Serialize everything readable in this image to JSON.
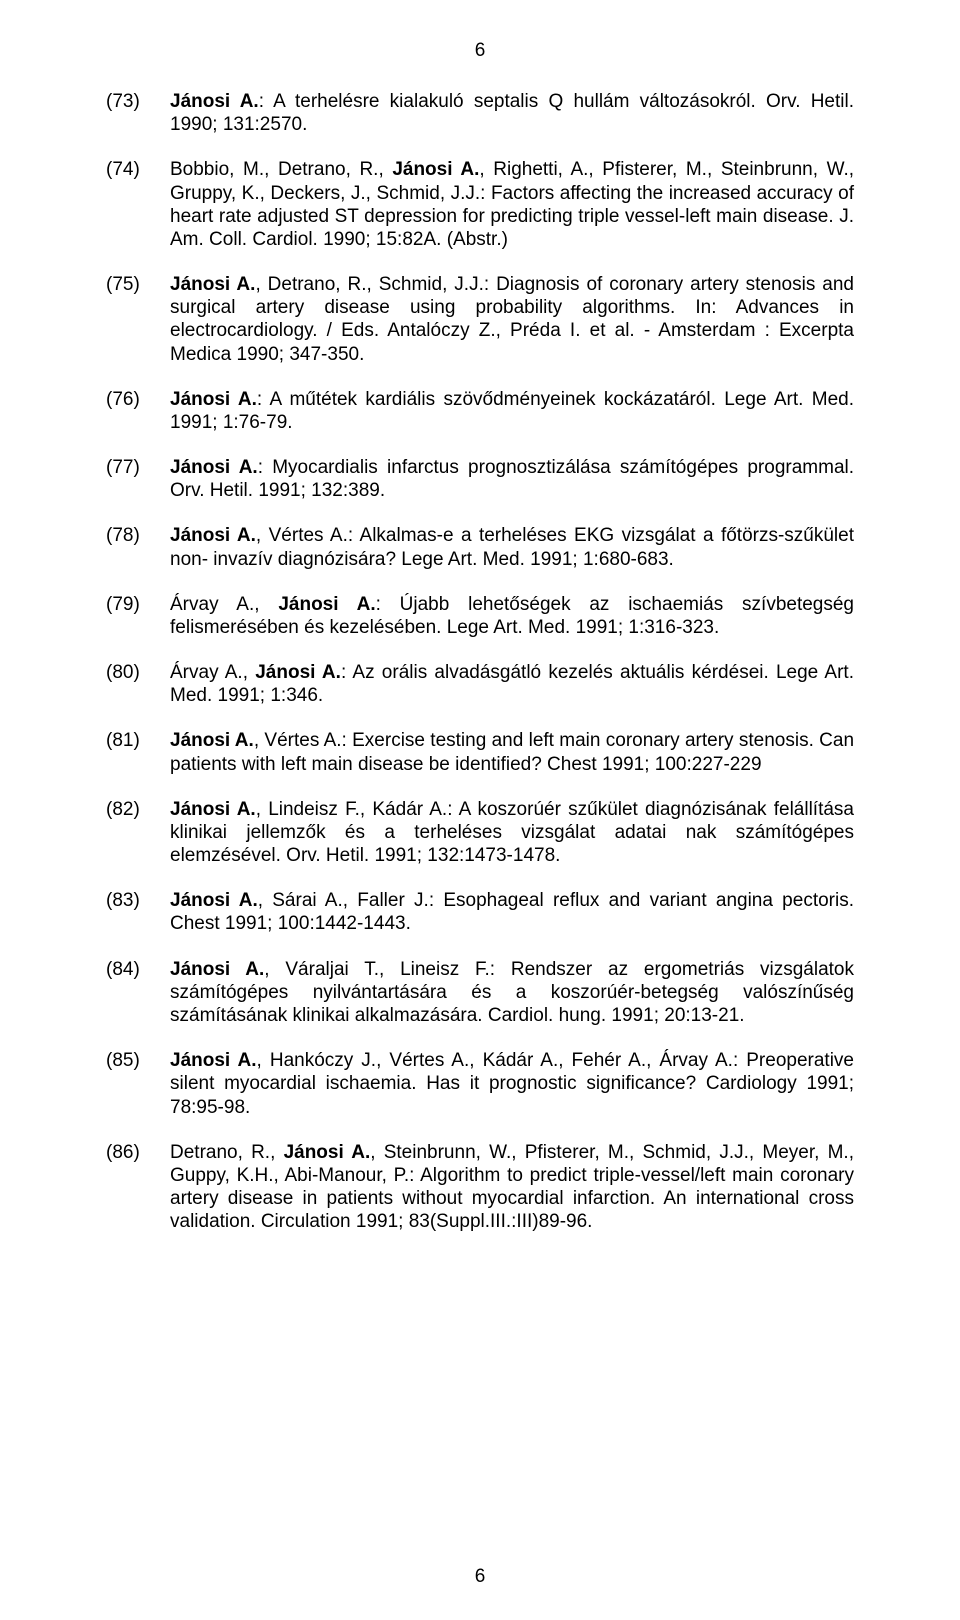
{
  "pageNumberTop": "6",
  "pageNumberBottom": "6",
  "fontSize": 19,
  "textColor": "#000000",
  "backgroundColor": "#ffffff",
  "entries": [
    {
      "num": "(73)",
      "segments": [
        {
          "bold": true,
          "text": "Jánosi A."
        },
        {
          "bold": false,
          "text": ": A terhelésre kialakuló septalis Q hullám változásokról. Orv. Hetil. 1990; 131:2570."
        }
      ]
    },
    {
      "num": "(74)",
      "segments": [
        {
          "bold": false,
          "text": "Bobbio, M., Detrano, R., "
        },
        {
          "bold": true,
          "text": "Jánosi A."
        },
        {
          "bold": false,
          "text": ", Righetti, A., Pfisterer, M., Steinbrunn, W., Gruppy, K., Deckers, J., Schmid, J.J.: Factors affecting the increased accuracy of heart rate adjusted ST depression for predicting triple vessel-left main disease. J. Am. Coll. Cardiol. 1990; 15:82A. (Abstr.)"
        }
      ]
    },
    {
      "num": "(75)",
      "segments": [
        {
          "bold": true,
          "text": "Jánosi A."
        },
        {
          "bold": false,
          "text": ", Detrano, R., Schmid, J.J.: Diagnosis of coronary artery stenosis and surgical artery disease using probability algorithms. In: Advances in electrocardiology. / Eds. Antalóczy Z., Préda I. et al. - Amsterdam : Excerpta Medica 1990; 347-350."
        }
      ]
    },
    {
      "num": "(76)",
      "segments": [
        {
          "bold": true,
          "text": "Jánosi A."
        },
        {
          "bold": false,
          "text": ": A műtétek kardiális szövődményeinek kockázatáról. Lege Art. Med. 1991; 1:76-79."
        }
      ]
    },
    {
      "num": "(77)",
      "segments": [
        {
          "bold": true,
          "text": "Jánosi A."
        },
        {
          "bold": false,
          "text": ": Myocardialis infarctus prognosztizálása számítógépes programmal. Orv. Hetil. 1991; 132:389."
        }
      ]
    },
    {
      "num": "(78)",
      "segments": [
        {
          "bold": true,
          "text": "Jánosi A."
        },
        {
          "bold": false,
          "text": ", Vértes A.: Alkalmas-e a terheléses EKG vizsgálat a főtörzs-szűkület non- invazív diagnózisára? Lege Art. Med. 1991; 1:680-683."
        }
      ]
    },
    {
      "num": "(79)",
      "segments": [
        {
          "bold": false,
          "text": "Árvay A., "
        },
        {
          "bold": true,
          "text": "Jánosi A."
        },
        {
          "bold": false,
          "text": ": Újabb lehetőségek az ischaemiás szívbetegség felismerésében és kezelésében. Lege Art. Med. 1991; 1:316-323."
        }
      ]
    },
    {
      "num": "(80)",
      "segments": [
        {
          "bold": false,
          "text": "Árvay A., "
        },
        {
          "bold": true,
          "text": "Jánosi A."
        },
        {
          "bold": false,
          "text": ": Az orális alvadásgátló kezelés aktuális kérdései. Lege Art. Med. 1991; 1:346."
        }
      ]
    },
    {
      "num": "(81)",
      "segments": [
        {
          "bold": true,
          "text": "Jánosi A."
        },
        {
          "bold": false,
          "text": ", Vértes A.: Exercise testing and left main coronary artery stenosis. Can patients with left main disease be identified? Chest 1991; 100:227-229"
        }
      ]
    },
    {
      "num": "(82)",
      "segments": [
        {
          "bold": true,
          "text": "Jánosi A."
        },
        {
          "bold": false,
          "text": ", Lindeisz F., Kádár A.: A koszorúér szűkület diagnózisának felállítása klinikai jellemzők és a terheléses vizsgálat adatai nak számítógépes elemzésével. Orv. Hetil. 1991; 132:1473-1478."
        }
      ]
    },
    {
      "num": "(83)",
      "segments": [
        {
          "bold": true,
          "text": "Jánosi A."
        },
        {
          "bold": false,
          "text": ", Sárai A., Faller J.: Esophageal reflux and variant angina pectoris. Chest 1991; 100:1442-1443."
        }
      ]
    },
    {
      "num": "(84)",
      "segments": [
        {
          "bold": true,
          "text": "Jánosi A."
        },
        {
          "bold": false,
          "text": ", Váraljai T., Lineisz F.: Rendszer az ergometriás vizsgálatok számítógépes nyilvántartására és a koszorúér-betegség valószínűség számításának klinikai alkalmazására. Cardiol. hung. 1991; 20:13-21."
        }
      ]
    },
    {
      "num": "(85)",
      "segments": [
        {
          "bold": true,
          "text": "Jánosi A."
        },
        {
          "bold": false,
          "text": ", Hankóczy J., Vértes A., Kádár A., Fehér A., Árvay A.: Preoperative silent myocardial ischaemia. Has it prognostic significance? Cardiology 1991; 78:95-98."
        }
      ]
    },
    {
      "num": "(86)",
      "segments": [
        {
          "bold": false,
          "text": "Detrano, R., "
        },
        {
          "bold": true,
          "text": "Jánosi A."
        },
        {
          "bold": false,
          "text": ", Steinbrunn, W., Pfisterer, M., Schmid, J.J., Meyer, M., Guppy, K.H., Abi-Manour, P.: Algorithm to predict triple-vessel/left main coronary artery disease in patients without myocardial infarction. An international cross validation. Circulation 1991; 83(Suppl.III.:III)89-96."
        }
      ]
    }
  ]
}
